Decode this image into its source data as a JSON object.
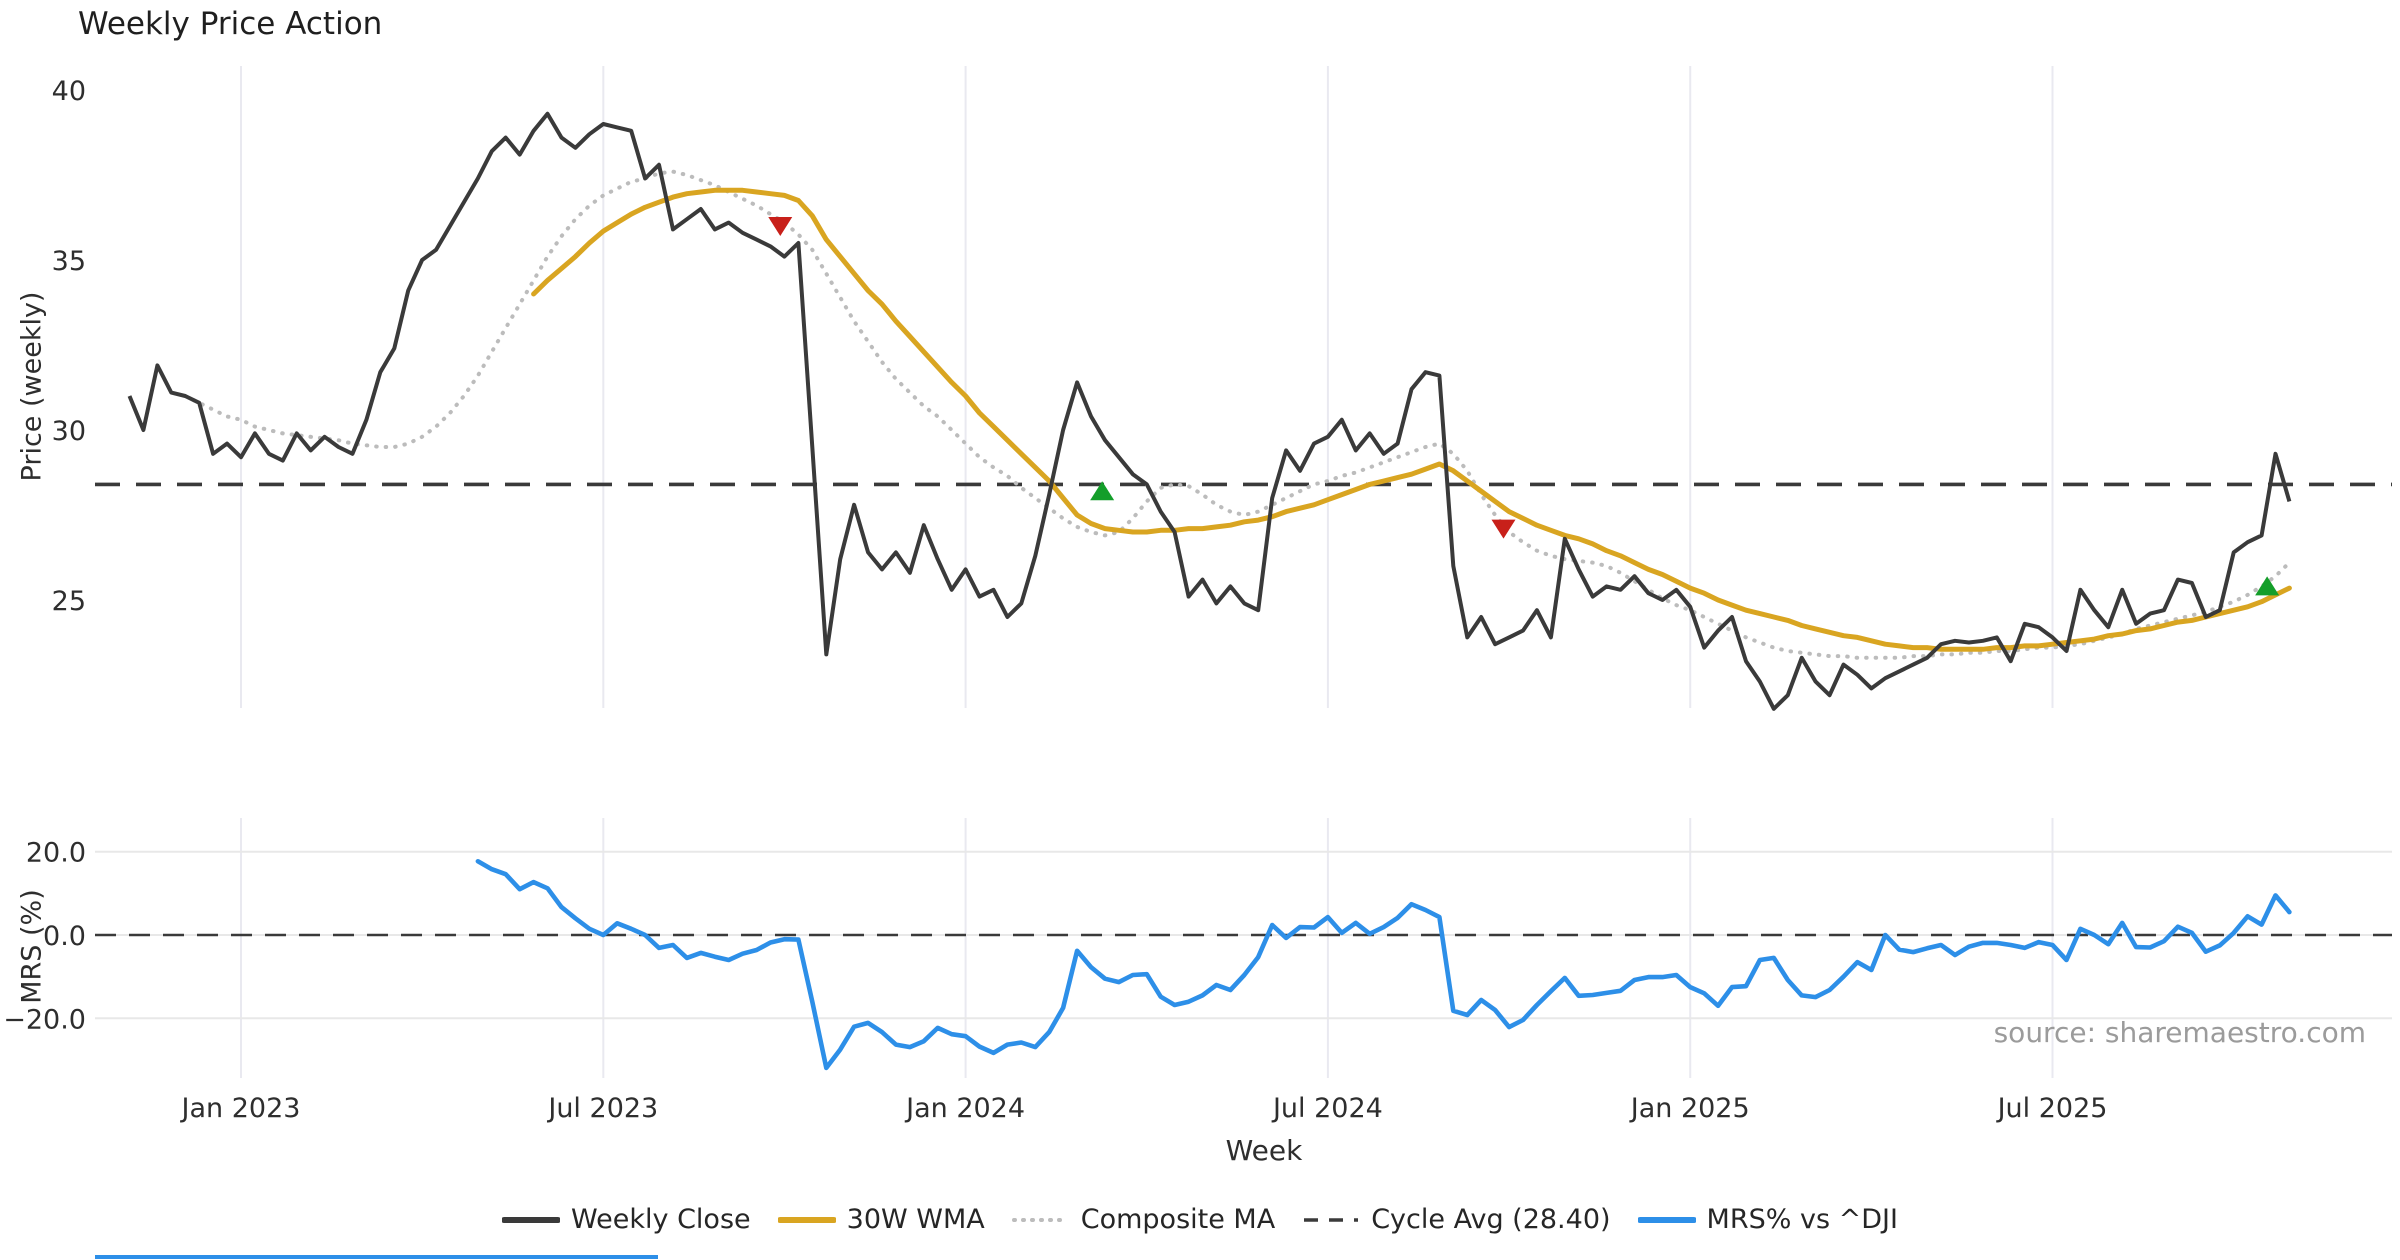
{
  "title": "Weekly Price Action",
  "source_note": "source: sharemaestro.com",
  "colors": {
    "weekly_close": "#3a3a3a",
    "wma_30w": "#d9a521",
    "composite_ma": "#bcbcbc",
    "cycle_avg": "#3a3a3a",
    "mrs": "#2d8fe8",
    "sell_marker": "#c8201a",
    "buy_marker": "#149e2a",
    "gridline": "#e9e9f0",
    "h_gridline": "#e8e8e8",
    "tick_text": "#2e2e2e"
  },
  "legend": {
    "items": [
      {
        "label": "Weekly Close",
        "swatch": "solid",
        "color": "#3a3a3a"
      },
      {
        "label": "30W WMA",
        "swatch": "solid",
        "color": "#d9a521"
      },
      {
        "label": "Composite MA",
        "swatch": "dotted",
        "color": "#bcbcbc"
      },
      {
        "label": "Cycle Avg (28.40)",
        "swatch": "dashed",
        "color": "#3a3a3a"
      },
      {
        "label": "MRS% vs ^DJI",
        "swatch": "solid",
        "color": "#2d8fe8"
      }
    ]
  },
  "chart_data": {
    "type": "line",
    "title": "Weekly Price Action",
    "xlabel": "Week",
    "x_axis": {
      "tick_weeks": [
        8,
        34,
        60,
        86,
        112,
        138
      ],
      "tick_labels": [
        "Jan 2023",
        "Jul 2023",
        "Jan 2024",
        "Jul 2024",
        "Jan 2025",
        "Jul 2025"
      ]
    },
    "price_panel": {
      "ylabel": "Price (weekly)",
      "yticks": [
        40,
        35,
        30,
        25
      ],
      "ylim": [
        21.0,
        40.7
      ],
      "cycle_avg": 28.4,
      "series": [
        {
          "name": "Weekly Close",
          "style": "solid",
          "color": "#3a3a3a",
          "start_week": 0,
          "values": [
            31.0,
            30.0,
            31.9,
            31.1,
            31.0,
            30.8,
            29.3,
            29.6,
            29.2,
            29.9,
            29.3,
            29.1,
            29.9,
            29.4,
            29.8,
            29.5,
            29.3,
            30.3,
            31.7,
            32.4,
            34.1,
            35.0,
            35.3,
            36.0,
            36.7,
            37.4,
            38.2,
            38.6,
            38.1,
            38.8,
            39.3,
            38.6,
            38.3,
            38.7,
            39.0,
            38.9,
            38.8,
            37.4,
            37.8,
            35.9,
            36.2,
            36.5,
            35.9,
            36.1,
            35.8,
            35.6,
            35.4,
            35.1,
            35.5,
            29.5,
            23.4,
            26.2,
            27.8,
            26.4,
            25.9,
            26.4,
            25.8,
            27.2,
            26.2,
            25.3,
            25.9,
            25.1,
            25.3,
            24.5,
            24.9,
            26.3,
            28.1,
            30.0,
            31.4,
            30.4,
            29.7,
            29.2,
            28.7,
            28.4,
            27.6,
            27.0,
            25.1,
            25.6,
            24.9,
            25.4,
            24.9,
            24.7,
            28.0,
            29.4,
            28.8,
            29.6,
            29.8,
            30.3,
            29.4,
            29.9,
            29.3,
            29.6,
            31.2,
            31.7,
            31.6,
            26.0,
            23.9,
            24.5,
            23.7,
            23.9,
            24.1,
            24.7,
            23.9,
            26.8,
            25.9,
            25.1,
            25.4,
            25.3,
            25.7,
            25.2,
            25.0,
            25.3,
            24.8,
            23.6,
            24.1,
            24.5,
            23.2,
            22.6,
            21.8,
            22.2,
            23.3,
            22.6,
            22.2,
            23.1,
            22.8,
            22.4,
            22.7,
            22.9,
            23.1,
            23.3,
            23.7,
            23.8,
            23.75,
            23.8,
            23.9,
            23.2,
            24.3,
            24.2,
            23.9,
            23.5,
            25.3,
            24.7,
            24.2,
            25.3,
            24.3,
            24.6,
            24.7,
            25.6,
            25.5,
            24.5,
            24.7,
            26.4,
            26.7,
            26.9,
            29.3,
            27.9
          ]
        },
        {
          "name": "30W WMA",
          "style": "solid",
          "color": "#d9a521",
          "start_week": 29,
          "values": [
            34.0,
            34.4,
            34.75,
            35.1,
            35.5,
            35.85,
            36.1,
            36.35,
            36.55,
            36.7,
            36.85,
            36.95,
            37.0,
            37.05,
            37.05,
            37.05,
            37.0,
            36.95,
            36.9,
            36.75,
            36.3,
            35.6,
            35.1,
            34.6,
            34.1,
            33.7,
            33.2,
            32.75,
            32.3,
            31.85,
            31.4,
            31.0,
            30.5,
            30.1,
            29.7,
            29.3,
            28.9,
            28.5,
            28.0,
            27.5,
            27.25,
            27.1,
            27.05,
            27.0,
            27.0,
            27.05,
            27.05,
            27.1,
            27.1,
            27.15,
            27.2,
            27.3,
            27.35,
            27.45,
            27.6,
            27.7,
            27.8,
            27.95,
            28.1,
            28.25,
            28.4,
            28.5,
            28.6,
            28.7,
            28.85,
            29.0,
            28.8,
            28.5,
            28.2,
            27.9,
            27.6,
            27.4,
            27.2,
            27.05,
            26.9,
            26.8,
            26.65,
            26.45,
            26.3,
            26.1,
            25.9,
            25.75,
            25.55,
            25.35,
            25.2,
            25.0,
            24.85,
            24.7,
            24.6,
            24.5,
            24.4,
            24.25,
            24.15,
            24.05,
            23.95,
            23.9,
            23.8,
            23.7,
            23.65,
            23.6,
            23.6,
            23.55,
            23.55,
            23.55,
            23.55,
            23.6,
            23.6,
            23.65,
            23.65,
            23.7,
            23.75,
            23.8,
            23.85,
            23.95,
            24.0,
            24.1,
            24.15,
            24.25,
            24.35,
            24.4,
            24.5,
            24.6,
            24.7,
            24.8,
            24.95,
            25.15,
            25.35
          ]
        },
        {
          "name": "Composite MA",
          "style": "dotted",
          "color": "#bcbcbc",
          "start_week": 4,
          "values": [
            31.0,
            30.8,
            30.6,
            30.4,
            30.3,
            30.1,
            30.0,
            29.9,
            29.85,
            29.8,
            29.75,
            29.7,
            29.6,
            29.55,
            29.5,
            29.5,
            29.6,
            29.8,
            30.1,
            30.5,
            31.0,
            31.6,
            32.3,
            33.0,
            33.7,
            34.4,
            35.1,
            35.7,
            36.2,
            36.6,
            36.9,
            37.1,
            37.3,
            37.4,
            37.55,
            37.6,
            37.5,
            37.35,
            37.2,
            37.0,
            36.8,
            36.6,
            36.35,
            36.1,
            35.75,
            35.3,
            34.6,
            33.9,
            33.2,
            32.6,
            32.0,
            31.5,
            31.1,
            30.7,
            30.4,
            30.0,
            29.6,
            29.2,
            28.9,
            28.65,
            28.3,
            28.0,
            27.7,
            27.4,
            27.15,
            27.0,
            26.9,
            27.0,
            27.4,
            27.9,
            28.3,
            28.4,
            28.35,
            28.1,
            27.8,
            27.6,
            27.5,
            27.6,
            27.8,
            28.0,
            28.2,
            28.4,
            28.5,
            28.65,
            28.75,
            28.9,
            29.05,
            29.2,
            29.35,
            29.5,
            29.6,
            29.3,
            28.8,
            28.1,
            27.5,
            27.0,
            26.7,
            26.45,
            26.3,
            26.2,
            26.15,
            26.1,
            26.0,
            25.8,
            25.55,
            25.3,
            25.05,
            24.85,
            24.7,
            24.5,
            24.3,
            24.1,
            23.9,
            23.75,
            23.6,
            23.5,
            23.45,
            23.4,
            23.35,
            23.35,
            23.3,
            23.3,
            23.3,
            23.3,
            23.35,
            23.35,
            23.4,
            23.4,
            23.45,
            23.45,
            23.5,
            23.5,
            23.55,
            23.6,
            23.6,
            23.65,
            23.7,
            23.8,
            23.9,
            24.0,
            24.15,
            24.25,
            24.35,
            24.45,
            24.55,
            24.65,
            24.8,
            24.95,
            25.15,
            25.4,
            25.7,
            26.1
          ]
        }
      ],
      "sell_signals": [
        {
          "week": 46.7,
          "price": 36.0
        },
        {
          "week": 98.6,
          "price": 27.1
        }
      ],
      "buy_signals": [
        {
          "week": 69.8,
          "price": 28.2
        },
        {
          "week": 153.4,
          "price": 25.4
        }
      ]
    },
    "mrs_panel": {
      "ylabel": "MRS (%)",
      "yticks": [
        20.0,
        0.0,
        -20.0
      ],
      "ytick_labels": [
        "20.0",
        "0.0",
        "−20.0"
      ],
      "zero_line": 0.0,
      "ylim": [
        -33.5,
        27.5
      ],
      "series": [
        {
          "name": "MRS% vs ^DJI",
          "style": "solid",
          "color": "#2d8fe8",
          "start_week": 25,
          "values": [
            17.7,
            15.8,
            14.6,
            11.0,
            12.7,
            11.2,
            6.7,
            4.0,
            1.5,
            0.0,
            2.8,
            1.5,
            0.0,
            -3.1,
            -2.4,
            -5.5,
            -4.3,
            -5.2,
            -6.0,
            -4.5,
            -3.6,
            -1.8,
            -1.0,
            -1.1,
            -16.0,
            -31.9,
            -27.5,
            -22.0,
            -21.1,
            -23.3,
            -26.3,
            -26.9,
            -25.5,
            -22.3,
            -23.8,
            -24.3,
            -26.8,
            -28.3,
            -26.3,
            -25.8,
            -26.9,
            -23.3,
            -17.5,
            -3.8,
            -7.7,
            -10.5,
            -11.3,
            -9.6,
            -9.4,
            -14.8,
            -16.8,
            -16.0,
            -14.5,
            -12.0,
            -13.2,
            -9.6,
            -5.3,
            2.4,
            -0.7,
            1.9,
            1.8,
            4.3,
            0.5,
            2.9,
            0.3,
            1.9,
            4.1,
            7.4,
            6.0,
            4.3,
            -18.2,
            -19.2,
            -15.6,
            -18.0,
            -22.1,
            -20.4,
            -16.8,
            -13.5,
            -10.3,
            -14.6,
            -14.4,
            -13.9,
            -13.4,
            -10.8,
            -10.1,
            -10.1,
            -9.6,
            -12.5,
            -14.0,
            -17.0,
            -12.5,
            -12.3,
            -6.0,
            -5.5,
            -10.8,
            -14.5,
            -14.9,
            -13.2,
            -10.0,
            -6.5,
            -8.4,
            0.0,
            -3.5,
            -4.1,
            -3.2,
            -2.4,
            -4.8,
            -2.8,
            -1.9,
            -1.9,
            -2.4,
            -3.1,
            -1.7,
            -2.4,
            -6.0,
            1.5,
            0.0,
            -2.2,
            2.9,
            -2.9,
            -3.0,
            -1.5,
            2.0,
            0.5,
            -4.0,
            -2.5,
            0.5,
            4.5,
            2.5,
            9.5,
            5.5
          ]
        }
      ]
    }
  }
}
